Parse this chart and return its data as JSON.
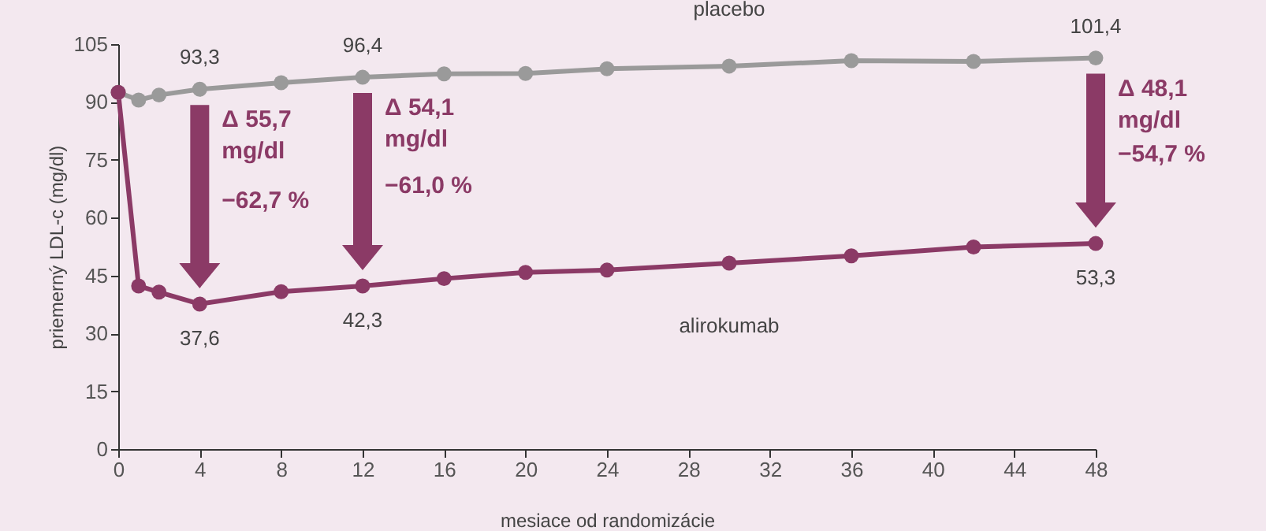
{
  "chart_data": {
    "type": "line",
    "xlabel": "mesiace od randomizácie",
    "ylabel": "priemerný LDL-c (mg/dl)",
    "x": [
      0,
      1,
      2,
      4,
      8,
      12,
      16,
      20,
      24,
      30,
      36,
      42,
      48
    ],
    "series": [
      {
        "name": "placebo",
        "color": "#9a9a9a",
        "values": [
          92.5,
          90.5,
          91.8,
          93.3,
          95,
          96.4,
          97.3,
          97.4,
          98.6,
          99.3,
          100.7,
          100.5,
          101.4
        ],
        "value_labels": [
          null,
          null,
          null,
          "93,3",
          null,
          "96,4",
          null,
          null,
          null,
          null,
          null,
          null,
          "101,4"
        ]
      },
      {
        "name": "alirokumab",
        "color": "#8b3a66",
        "values": [
          92.5,
          42.3,
          40.7,
          37.6,
          40.8,
          42.3,
          44.2,
          45.8,
          46.4,
          48.2,
          50.1,
          52.4,
          53.3
        ],
        "value_labels": [
          null,
          null,
          null,
          "37,6",
          null,
          "42,3",
          null,
          null,
          null,
          null,
          null,
          null,
          "53,3"
        ]
      }
    ],
    "xlim": [
      0,
      48
    ],
    "xticks": [
      0,
      4,
      8,
      12,
      16,
      20,
      24,
      28,
      32,
      36,
      40,
      44,
      48
    ],
    "ylim": [
      0,
      105
    ],
    "yticks": [
      0,
      15,
      30,
      45,
      60,
      75,
      90,
      105
    ],
    "grid": false,
    "legend": false,
    "marker": "circle",
    "line_style": "solid",
    "annotations": [
      "Δ 55,7\nmg/dl",
      "−62,7 %",
      "Δ 54,1\nmg/dl",
      "−61,0 %",
      "Δ 48,1\nmg/dl",
      "−54,7 %"
    ]
  }
}
